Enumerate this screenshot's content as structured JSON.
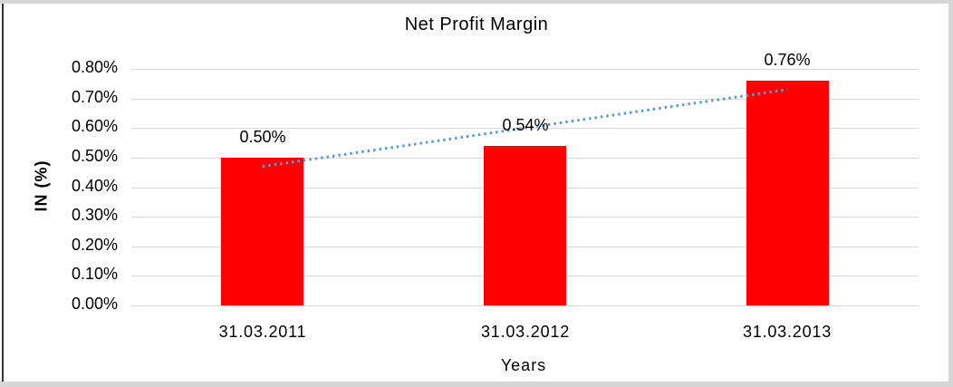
{
  "chart_data": {
    "type": "bar",
    "title": "Net Profit Margin",
    "xlabel": "Years",
    "ylabel": "IN (%)",
    "categories": [
      "31.03.2011",
      "31.03.2012",
      "31.03.2013"
    ],
    "values": [
      0.5,
      0.54,
      0.76
    ],
    "data_labels": [
      "0.50%",
      "0.54%",
      "0.76%"
    ],
    "ytick_values": [
      0.0,
      0.1,
      0.2,
      0.3,
      0.4,
      0.5,
      0.6,
      0.7,
      0.8
    ],
    "ytick_labels": [
      "0.00%",
      "0.10%",
      "0.20%",
      "0.30%",
      "0.40%",
      "0.50%",
      "0.60%",
      "0.70%",
      "0.80%"
    ],
    "ylim": [
      0.0,
      0.8
    ],
    "grid": "horizontal",
    "legend": "none",
    "bar_color": "#FF0000",
    "trendline": {
      "type": "linear",
      "style": "dotted",
      "color": "#5B9BD5",
      "start_value": 0.47,
      "end_value": 0.73
    }
  },
  "colors": {
    "gridline": "#D9D9D9",
    "text": "#000000",
    "frame_strip": "#D6D6D6",
    "left_border": "#353535",
    "background": "#FFFFFF"
  }
}
